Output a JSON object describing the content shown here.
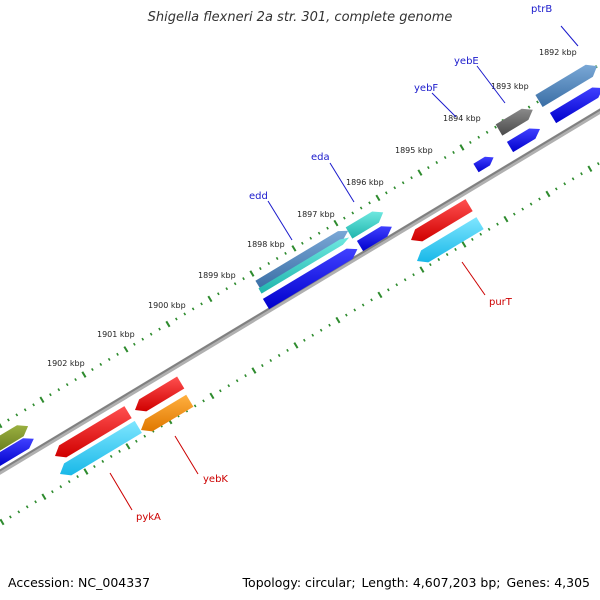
{
  "title": "Shigella flexneri 2a str. 301, complete genome",
  "footer": {
    "accession_label": "Accession:",
    "accession": "NC_004337",
    "topology_label": "Topology:",
    "topology": "circular",
    "length_label": "Length:",
    "length": "4,607,203 bp",
    "genes_label": "Genes:",
    "genes": "4,305"
  },
  "colors": {
    "backbone": "#808080",
    "tick": "#2e8b2e",
    "forward_label": "#1a1acc",
    "reverse_label": "#cc0000"
  },
  "kbp_labels": [
    "1892 kbp",
    "1893 kbp",
    "1894 kbp",
    "1895 kbp",
    "1896 kbp",
    "1897 kbp",
    "1898 kbp",
    "1899 kbp",
    "1900 kbp",
    "1901 kbp",
    "1902 kbp"
  ],
  "gene_labels": [
    {
      "name": "ptrB",
      "strand": "forward"
    },
    {
      "name": "yebE",
      "strand": "forward"
    },
    {
      "name": "yebF",
      "strand": "forward"
    },
    {
      "name": "eda",
      "strand": "forward"
    },
    {
      "name": "edd",
      "strand": "forward"
    },
    {
      "name": "purT",
      "strand": "reverse"
    },
    {
      "name": "yebK",
      "strand": "reverse"
    },
    {
      "name": "pykA",
      "strand": "reverse"
    }
  ]
}
